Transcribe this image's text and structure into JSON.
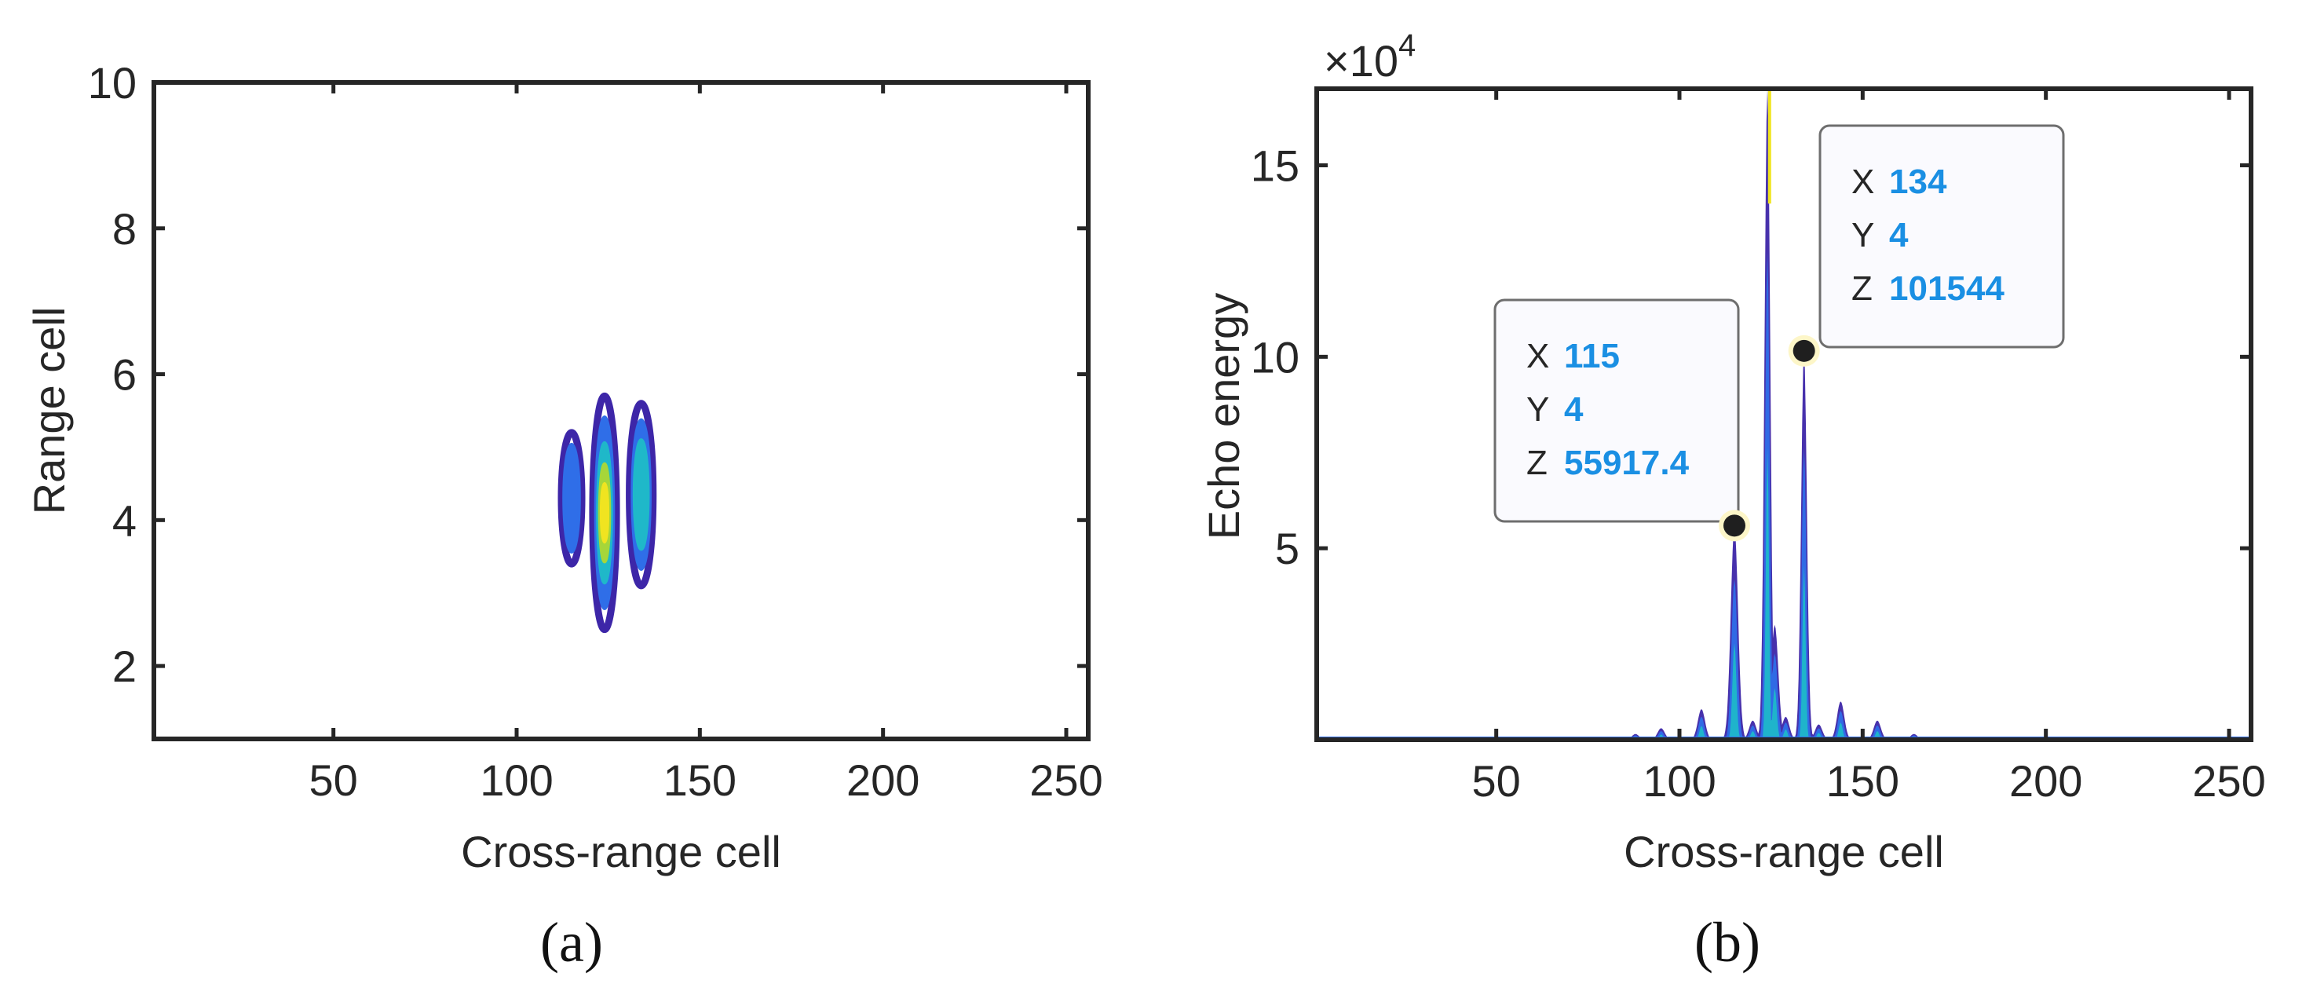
{
  "colors": {
    "axis": "#262626",
    "parula_dark": "#3d26a8",
    "parula_blue": "#2f6ee8",
    "parula_cyan": "#1fb8c9",
    "parula_yellow": "#f0e420",
    "datatip_value": "#1a8fe3"
  },
  "chart_data": [
    {
      "type": "heatmap",
      "subtype": "contour",
      "panel_label": "(a)",
      "title": "",
      "xlabel": "Cross-range cell",
      "ylabel": "Range cell",
      "xlim": [
        1,
        256
      ],
      "ylim": [
        1,
        10
      ],
      "xticks": [
        50,
        100,
        150,
        200,
        250
      ],
      "yticks": [
        2,
        4,
        6,
        8,
        10
      ],
      "grid": false,
      "blobs": [
        {
          "x": 115,
          "y_min": 3.4,
          "y_max": 5.2,
          "peak": 0.3
        },
        {
          "x": 124,
          "y_min": 2.5,
          "y_max": 5.7,
          "peak": 1.0
        },
        {
          "x": 134,
          "y_min": 3.1,
          "y_max": 5.6,
          "peak": 0.6
        }
      ]
    },
    {
      "type": "area",
      "panel_label": "(b)",
      "title": "",
      "xlabel": "Cross-range cell",
      "ylabel": "Echo energy",
      "multiplier": "×10^4",
      "xlim": [
        1,
        256
      ],
      "ylim": [
        0,
        170000
      ],
      "xticks": [
        50,
        100,
        150,
        200,
        250
      ],
      "yticks": [
        50000,
        100000,
        150000
      ],
      "ytick_labels": [
        "5",
        "10",
        "15"
      ],
      "grid": false,
      "series": [
        {
          "peaks": [
            {
              "x": 88,
              "y": 1500
            },
            {
              "x": 95,
              "y": 3000
            },
            {
              "x": 106,
              "y": 8000
            },
            {
              "x": 115,
              "y": 55917.4
            },
            {
              "x": 120,
              "y": 5000
            },
            {
              "x": 124,
              "y": 170000
            },
            {
              "x": 126,
              "y": 30000
            },
            {
              "x": 129,
              "y": 6000
            },
            {
              "x": 134,
              "y": 101544
            },
            {
              "x": 138,
              "y": 4000
            },
            {
              "x": 144,
              "y": 10000
            },
            {
              "x": 154,
              "y": 5000
            },
            {
              "x": 164,
              "y": 1500
            }
          ]
        }
      ],
      "datatips": [
        {
          "x_label": "X",
          "x": "115",
          "y_label": "Y",
          "y": "4",
          "z_label": "Z",
          "z": "55917.4",
          "point": [
            115,
            55917.4
          ]
        },
        {
          "x_label": "X",
          "x": "134",
          "y_label": "Y",
          "y": "4",
          "z_label": "Z",
          "z": "101544",
          "point": [
            134,
            101544
          ]
        }
      ]
    }
  ]
}
